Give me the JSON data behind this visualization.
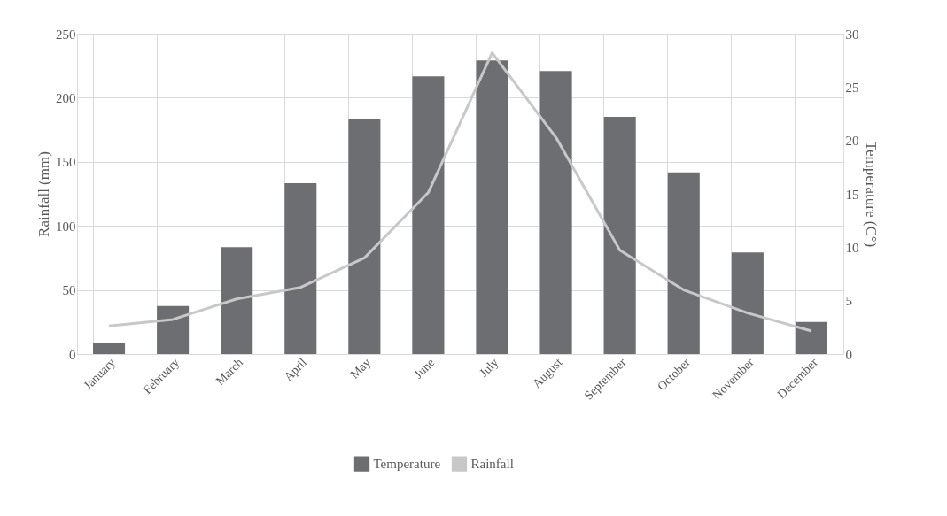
{
  "chart_data": {
    "type": "bar",
    "ylabel": "Rainfall (mm)",
    "y2label": "Temperature (C°)",
    "categories": [
      "January",
      "February",
      "March",
      "April",
      "May",
      "June",
      "July",
      "August",
      "September",
      "October",
      "November",
      "December"
    ],
    "series": [
      {
        "name": "Temperature",
        "axis": "y2",
        "color": "#6d6e71",
        "values": [
          1.0,
          4.5,
          10,
          16,
          22,
          26,
          27.5,
          26.5,
          22.2,
          17,
          9.5,
          3
        ]
      },
      {
        "name": "Rainfall",
        "type": "line",
        "color": "#c8c8c8",
        "values": [
          22,
          27,
          43,
          52,
          75,
          126,
          235,
          169,
          81,
          50,
          32,
          18
        ]
      }
    ],
    "ylim": [
      0,
      250
    ],
    "yticks": [
      0,
      50,
      100,
      150,
      200,
      250
    ],
    "y2lim": [
      0,
      30
    ],
    "y2ticks": [
      0,
      5,
      10,
      15,
      20,
      25,
      30
    ],
    "grid": true,
    "legend": "bottom",
    "marker": "none",
    "line_style": "solid"
  }
}
